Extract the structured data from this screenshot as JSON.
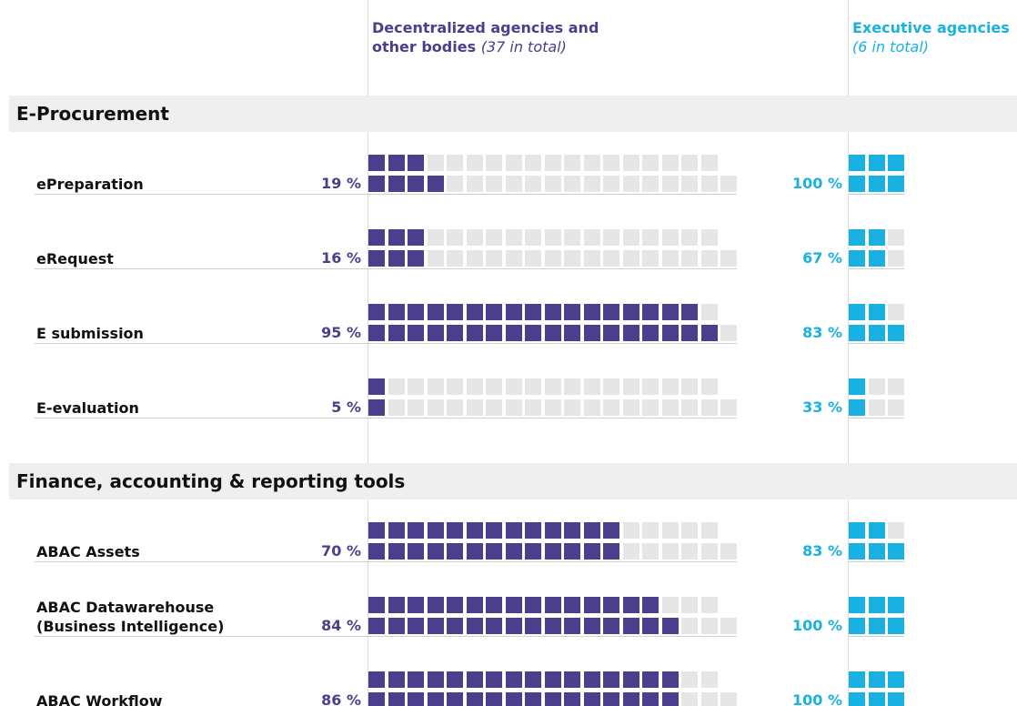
{
  "chart_data": {
    "type": "waffle",
    "columns": [
      {
        "title": "Decentralized agencies and other bodies",
        "note": "(37 in total)",
        "units": 37,
        "color": "#4b3e8c"
      },
      {
        "title": "Executive agencies",
        "note": "(6 in total)",
        "units": 6,
        "color": "#19b1e1"
      }
    ],
    "empty_color": "#e6e6e6",
    "sections": [
      {
        "title": "E-Procurement",
        "rows": [
          {
            "label": "ePreparation",
            "values": [
              19,
              100
            ],
            "value_labels": [
              "19 %",
              "100 %"
            ]
          },
          {
            "label": "eRequest",
            "values": [
              16,
              67
            ],
            "value_labels": [
              "16 %",
              "67 %"
            ]
          },
          {
            "label": "E submission",
            "values": [
              95,
              83
            ],
            "value_labels": [
              "95 %",
              "83 %"
            ]
          },
          {
            "label": "E-evaluation",
            "values": [
              5,
              33
            ],
            "value_labels": [
              "5 %",
              "33 %"
            ]
          }
        ]
      },
      {
        "title": "Finance, accounting & reporting tools",
        "rows": [
          {
            "label": "ABAC Assets",
            "values": [
              70,
              83
            ],
            "value_labels": [
              "70 %",
              "83 %"
            ]
          },
          {
            "label": "ABAC Datawarehouse (Business Intelligence)",
            "values": [
              84,
              100
            ],
            "value_labels": [
              "84 %",
              "100 %"
            ]
          },
          {
            "label": "ABAC Workflow",
            "values": [
              86,
              100
            ],
            "value_labels": [
              "86 %",
              "100 %"
            ]
          }
        ]
      }
    ]
  }
}
